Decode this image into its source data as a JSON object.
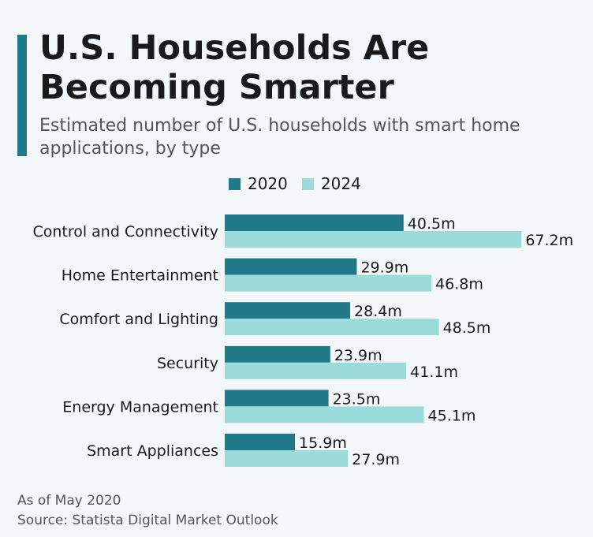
{
  "title": "U.S. Households Are Becoming Smarter",
  "subtitle": "Estimated number of U.S. households with smart home applications, by type",
  "footer": {
    "note": "As of May 2020",
    "source": "Source: Statista Digital Market Outlook"
  },
  "colors": {
    "accent": "#1f7a8c",
    "series_2020": "#217a8a",
    "series_2024": "#9bdbd9"
  },
  "chart_data": {
    "type": "bar",
    "orientation": "horizontal",
    "categories": [
      "Control and Connectivity",
      "Home Entertainment",
      "Comfort and Lighting",
      "Security",
      "Energy Management",
      "Smart Appliances"
    ],
    "series": [
      {
        "name": "2020",
        "values": [
          40.5,
          29.9,
          28.4,
          23.9,
          23.5,
          15.9
        ],
        "labels": [
          "40.5m",
          "29.9m",
          "28.4m",
          "23.9m",
          "23.5m",
          "15.9m"
        ]
      },
      {
        "name": "2024",
        "values": [
          67.2,
          46.8,
          48.5,
          41.1,
          45.1,
          27.9
        ],
        "labels": [
          "67.2m",
          "46.8m",
          "48.5m",
          "41.1m",
          "45.1m",
          "27.9m"
        ]
      }
    ],
    "unit": "m",
    "legend_position": "top",
    "grid": false,
    "axes_visible": false
  }
}
